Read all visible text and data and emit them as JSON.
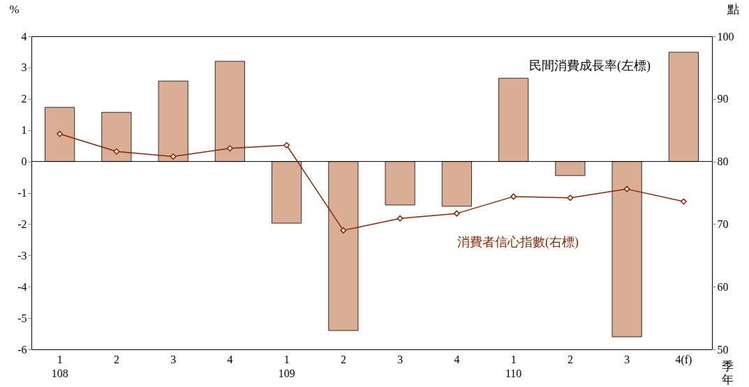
{
  "chart_data": {
    "type": "bar",
    "xlabel": "季年",
    "ylabel": "%",
    "y2label": "點",
    "categories": [
      "1\n108",
      "2",
      "3",
      "4",
      "1\n109",
      "2",
      "3",
      "4",
      "1\n110",
      "2",
      "3",
      "4(f)"
    ],
    "series": [
      {
        "name": "民間消費成長率(左標)",
        "color": "#d9ae94",
        "values": [
          1.73,
          1.57,
          2.57,
          3.2,
          -1.97,
          -5.4,
          -1.39,
          -1.43,
          2.66,
          -0.45,
          -5.6,
          3.49
        ]
      },
      {
        "name": "消費者信心指數(右標)",
        "type": "line",
        "axis": "y2",
        "color": "#8b2500",
        "values": [
          84.4,
          81.6,
          80.8,
          82.1,
          82.6,
          69.0,
          70.9,
          71.7,
          74.4,
          74.2,
          75.6,
          73.6
        ]
      }
    ],
    "ylim": [
      -6,
      4
    ],
    "yticks": [
      -6,
      -5,
      -4,
      -3,
      -2,
      -1,
      0,
      1,
      2,
      3,
      4
    ],
    "y2lim": [
      50,
      100
    ],
    "y2ticks": [
      50,
      60,
      70,
      80,
      90,
      100
    ],
    "ref_lines": [
      {
        "axis": "y",
        "value": 0,
        "color": "#000000"
      }
    ],
    "marker": "diamond",
    "line_style": "solid"
  }
}
